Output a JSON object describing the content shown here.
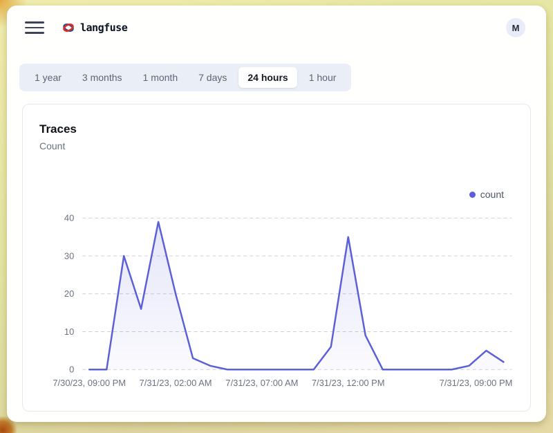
{
  "topbar": {
    "brand": "langfuse",
    "avatar_initial": "M"
  },
  "time_range_tabs": [
    {
      "label": "1 year",
      "active": false
    },
    {
      "label": "3 months",
      "active": false
    },
    {
      "label": "1 month",
      "active": false
    },
    {
      "label": "7 days",
      "active": false
    },
    {
      "label": "24 hours",
      "active": true
    },
    {
      "label": "1 hour",
      "active": false
    }
  ],
  "card": {
    "title": "Traces",
    "subtitle": "Count"
  },
  "legend": {
    "label": "count",
    "color": "#5b5fd8"
  },
  "chart_data": {
    "type": "area",
    "title": "Traces",
    "ylabel": "Count",
    "ylim": [
      0,
      40
    ],
    "y_ticks": [
      0,
      10,
      20,
      30,
      40
    ],
    "grid": "dashed-horizontal",
    "legend_position": "top-right",
    "x_ticks": [
      {
        "label": "7/30/23, 09:00 PM",
        "pos": 0
      },
      {
        "label": "7/31/23, 02:00 AM",
        "pos": 5
      },
      {
        "label": "7/31/23, 07:00 AM",
        "pos": 10
      },
      {
        "label": "7/31/23, 12:00 PM",
        "pos": 15
      },
      {
        "label": "7/31/23, 09:00 PM",
        "pos": 22.4
      }
    ],
    "series": [
      {
        "name": "count",
        "color": "#5b5fd8",
        "values": [
          0,
          0,
          30,
          16,
          39,
          20,
          3,
          1,
          0,
          0,
          0,
          0,
          0,
          0,
          6,
          35,
          9,
          0,
          0,
          0,
          0,
          0,
          1,
          5,
          2
        ]
      }
    ]
  },
  "colors": {
    "accent": "#5b5fd8",
    "tabbar_bg": "#eaeef6",
    "card_border": "#e6e8ec",
    "muted_text": "#6b7280"
  }
}
